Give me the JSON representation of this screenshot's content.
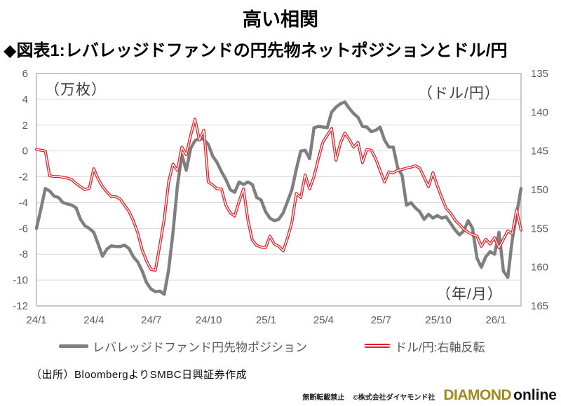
{
  "title": "高い相関",
  "subtitle": "◆図表1:レバレッジドファンドの円先物ネットポジションとドル/円",
  "source": "（出所）BloombergよりSMBC日興証券作成",
  "footer": {
    "notice": "無断転載禁止",
    "copyright": "©株式会社ダイヤモンド社",
    "logo_diamond": "DIAMOND",
    "logo_online": "online",
    "logo_color": "#a08a1e"
  },
  "chart_data": {
    "type": "line",
    "grid": "horizontal",
    "legend_position": "bottom",
    "colors": {
      "gray_series": "#7f7f7f",
      "red_series": "#e32028",
      "gridline": "#d9d9d9",
      "border": "#ababab",
      "tick_text": "#595959"
    },
    "left_axis": {
      "unit_label": "（万枚）",
      "max": 6,
      "min": -12,
      "tick_step": 2,
      "ticks": [
        6,
        4,
        2,
        0,
        -2,
        -4,
        -6,
        -8,
        -10,
        -12
      ]
    },
    "right_axis": {
      "unit_label": "（ドル/円）",
      "min": 135,
      "max": 165,
      "tick_step": 5,
      "inverted": true,
      "ticks": [
        135,
        140,
        145,
        150,
        155,
        160,
        165
      ]
    },
    "x_axis": {
      "note": "（年/月）",
      "weeks_per_month": 4.345,
      "ticks": [
        {
          "label": "24/1",
          "month": 0
        },
        {
          "label": "24/4",
          "month": 3
        },
        {
          "label": "24/7",
          "month": 6
        },
        {
          "label": "24/10",
          "month": 9
        },
        {
          "label": "25/1",
          "month": 12
        },
        {
          "label": "25/4",
          "month": 15
        },
        {
          "label": "25/7",
          "month": 18
        },
        {
          "label": "25/10",
          "month": 21
        },
        {
          "label": "26/1",
          "month": 24
        }
      ]
    },
    "series": [
      {
        "name": "レバレッジドファンド円先物ポジション",
        "axis": "left",
        "style": "solid",
        "color": "#7f7f7f",
        "stroke_width": 4.5,
        "values": [
          -6.0,
          -4.5,
          -2.9,
          -3.1,
          -3.5,
          -3.6,
          -4.0,
          -4.1,
          -4.2,
          -4.4,
          -5.3,
          -5.8,
          -6.0,
          -6.3,
          -7.2,
          -8.15,
          -7.6,
          -7.35,
          -7.4,
          -7.4,
          -7.3,
          -7.55,
          -8.2,
          -8.6,
          -9.3,
          -10.2,
          -10.7,
          -10.9,
          -10.85,
          -11.1,
          -9.2,
          -6.3,
          -2.7,
          -0.3,
          -1.5,
          0.2,
          0.8,
          1.0,
          0.9,
          0.5,
          -0.4,
          -0.9,
          -1.6,
          -2.2,
          -3.0,
          -3.2,
          -2.4,
          -2.6,
          -2.4,
          -2.6,
          -3.6,
          -3.8,
          -4.7,
          -5.2,
          -5.4,
          -5.3,
          -4.8,
          -3.9,
          -3.0,
          -1.4,
          0.0,
          0.05,
          -0.6,
          1.8,
          1.9,
          1.85,
          1.8,
          3.0,
          3.4,
          3.65,
          3.8,
          3.3,
          2.9,
          2.6,
          1.9,
          1.85,
          1.5,
          1.6,
          1.85,
          0.85,
          0.3,
          0.3,
          -1.3,
          -1.9,
          -4.2,
          -4.0,
          -4.4,
          -4.7,
          -5.3,
          -4.9,
          -5.2,
          -5.0,
          -5.2,
          -5.1,
          -5.6,
          -6.1,
          -6.5,
          -6.2,
          -5.4,
          -6.0,
          -8.3,
          -9.0,
          -8.2,
          -7.8,
          -8.0,
          -6.3,
          -9.3,
          -9.8,
          -6.9,
          -4.9,
          -2.9
        ]
      },
      {
        "name": "ドル/円:右軸反転",
        "axis": "right",
        "style": "double",
        "color": "#e32028",
        "stroke_width": 4,
        "values": [
          144.8,
          144.9,
          145.0,
          148.2,
          148.3,
          148.3,
          148.4,
          148.5,
          148.7,
          149.2,
          149.6,
          150.0,
          149.8,
          147.3,
          148.6,
          149.6,
          150.3,
          150.9,
          150.9,
          151.2,
          152.0,
          152.8,
          154.0,
          155.6,
          157.8,
          159.2,
          160.3,
          160.4,
          157.2,
          153.8,
          149.0,
          146.7,
          147.5,
          144.5,
          145.5,
          143.0,
          140.9,
          143.6,
          142.3,
          149.0,
          149.4,
          149.9,
          149.9,
          152.0,
          153.0,
          153.4,
          151.5,
          149.9,
          153.9,
          156.5,
          157.2,
          157.4,
          157.5,
          156.0,
          157.0,
          157.3,
          157.9,
          156.2,
          154.2,
          150.5,
          151.0,
          148.1,
          149.9,
          148.3,
          146.0,
          143.9,
          143.0,
          142.1,
          146.2,
          144.0,
          142.7,
          143.5,
          144.5,
          143.9,
          146.5,
          144.8,
          144.9,
          146.0,
          147.5,
          149.0,
          147.7,
          147.8,
          147.5,
          147.4,
          147.2,
          147.1,
          146.9,
          147.2,
          148.4,
          149.6,
          147.8,
          149.5,
          151.0,
          152.4,
          153.0,
          153.9,
          154.5,
          155.1,
          155.5,
          155.8,
          156.0,
          157.3,
          156.4,
          157.0,
          156.2,
          157.5,
          156.4,
          155.3,
          155.7,
          152.6,
          155.2
        ]
      }
    ]
  }
}
